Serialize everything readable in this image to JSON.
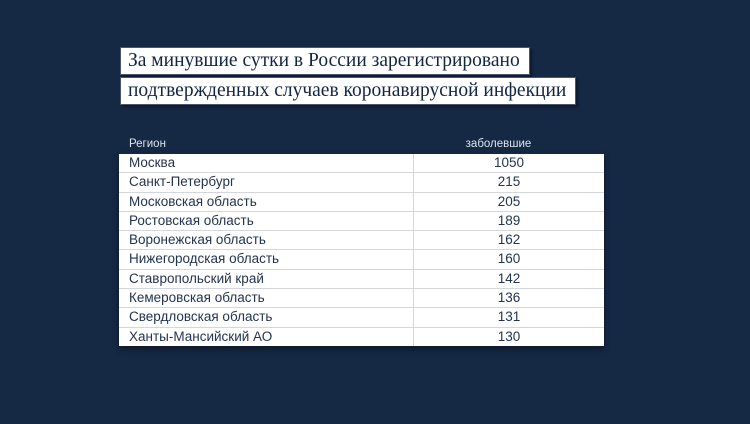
{
  "colors": {
    "background": "#152844",
    "highlight_bar": "#ffffff",
    "title_text": "#122543",
    "table_header_text": "#dbe3ef",
    "table_row_text": "#233450",
    "divider": "#d3d6db"
  },
  "title": {
    "lines": [
      "За минувшие сутки в России зарегистрировано",
      "подтвержденных случаев коронавирусной инфекции"
    ]
  },
  "table": {
    "columns": [
      {
        "key": "region",
        "label": "Регион"
      },
      {
        "key": "cases",
        "label": "заболевшие"
      }
    ],
    "rows": [
      {
        "region": "Москва",
        "value": "1050"
      },
      {
        "region": "Санкт-Петербург",
        "value": "215"
      },
      {
        "region": "Московская область",
        "value": "205"
      },
      {
        "region": "Ростовская область",
        "value": "189"
      },
      {
        "region": "Воронежская область",
        "value": "162"
      },
      {
        "region": "Нижегородская область",
        "value": "160"
      },
      {
        "region": "Ставропольский край",
        "value": "142"
      },
      {
        "region": "Кемеровская область",
        "value": "136"
      },
      {
        "region": "Свердловская область",
        "value": "131"
      },
      {
        "region": "Ханты-Мансийский АО",
        "value": "130"
      }
    ]
  },
  "chart_data": {
    "type": "table",
    "title": "За минувшие сутки в России зарегистрировано подтвержденных случаев коронавирусной инфекции",
    "columns": [
      "Регион",
      "заболевшие"
    ],
    "categories": [
      "Москва",
      "Санкт-Петербург",
      "Московская область",
      "Ростовская область",
      "Воронежская область",
      "Нижегородская область",
      "Ставропольский край",
      "Кемеровская область",
      "Свердловская область",
      "Ханты-Мансийский АО"
    ],
    "values": [
      1050,
      215,
      205,
      189,
      162,
      160,
      142,
      136,
      131,
      130
    ]
  }
}
